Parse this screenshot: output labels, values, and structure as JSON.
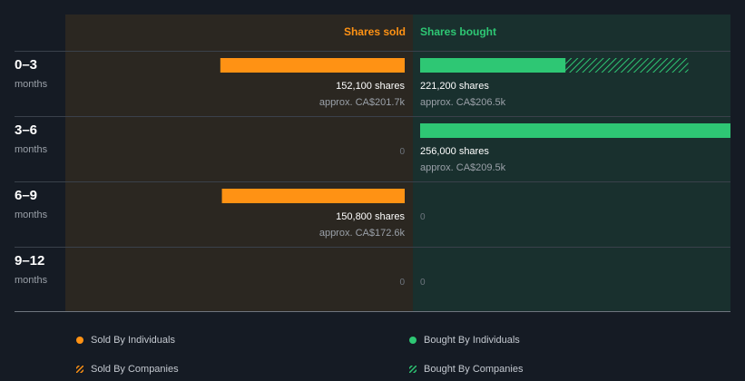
{
  "chart_data": {
    "type": "bar",
    "columns": {
      "sold": "Shares sold",
      "bought": "Shares bought"
    },
    "periods": [
      {
        "label": "0–3",
        "unit": "months",
        "sold": {
          "individuals": 152100,
          "companies": 0,
          "shares_text": "152,100 shares",
          "approx_text": "approx. CA$201.7k"
        },
        "bought": {
          "individuals": 120000,
          "companies": 101200,
          "shares_text": "221,200 shares",
          "approx_text": "approx. CA$206.5k"
        }
      },
      {
        "label": "3–6",
        "unit": "months",
        "sold": {
          "individuals": 0,
          "companies": 0,
          "shares_text": "0",
          "approx_text": ""
        },
        "bought": {
          "individuals": 256000,
          "companies": 0,
          "shares_text": "256,000 shares",
          "approx_text": "approx. CA$209.5k"
        }
      },
      {
        "label": "6–9",
        "unit": "months",
        "sold": {
          "individuals": 150800,
          "companies": 0,
          "shares_text": "150,800 shares",
          "approx_text": "approx. CA$172.6k"
        },
        "bought": {
          "individuals": 0,
          "companies": 0,
          "shares_text": "0",
          "approx_text": ""
        }
      },
      {
        "label": "9–12",
        "unit": "months",
        "sold": {
          "individuals": 0,
          "companies": 0,
          "shares_text": "0",
          "approx_text": ""
        },
        "bought": {
          "individuals": 0,
          "companies": 0,
          "shares_text": "0",
          "approx_text": ""
        }
      }
    ],
    "max_shares": 256000,
    "legend": [
      {
        "label": "Sold By Individuals",
        "color": "#ff9214",
        "pattern": "solid"
      },
      {
        "label": "Bought By Individuals",
        "color": "#2ec774",
        "pattern": "solid"
      },
      {
        "label": "Sold By Companies",
        "color": "#ff9214",
        "pattern": "hatched"
      },
      {
        "label": "Bought By Companies",
        "color": "#2ec774",
        "pattern": "hatched"
      }
    ],
    "colors": {
      "sold": "#ff9214",
      "bought": "#2ec774",
      "sold_bg": "#2b2721",
      "bought_bg": "#19302e",
      "page_bg": "#151b24"
    }
  }
}
